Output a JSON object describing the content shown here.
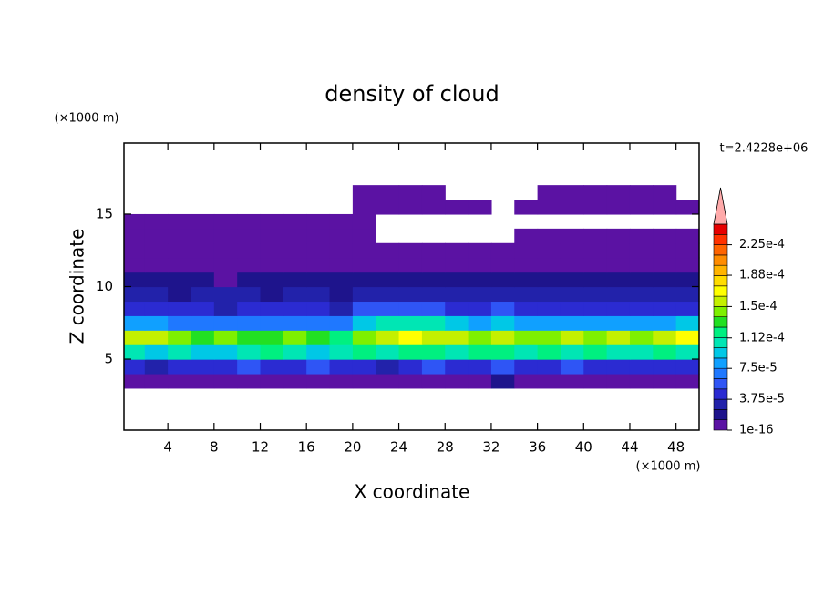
{
  "chart_data": {
    "type": "filled-contour",
    "title": "density of cloud",
    "x_label": "X coordinate",
    "y_label": "Z coordinate",
    "x_unit": "(×1000 m)",
    "y_unit": "(×1000 m)",
    "time_label": "t=2.4228e+06",
    "xlim": [
      0.2,
      50
    ],
    "ylim": [
      0.1,
      19.9
    ],
    "xticks": [
      4,
      8,
      12,
      16,
      20,
      24,
      28,
      32,
      36,
      40,
      44,
      48
    ],
    "yticks": [
      5,
      10,
      15
    ],
    "x": [
      1,
      3,
      5,
      7,
      9,
      11,
      13,
      15,
      17,
      19,
      21,
      23,
      25,
      27,
      29,
      31,
      33,
      35,
      37,
      39,
      41,
      43,
      45,
      47,
      49
    ],
    "y": [
      3.5,
      4.5,
      5.5,
      6.5,
      7.5,
      8.5,
      9.5,
      10.5,
      11.5,
      12.5,
      13.5,
      14.5,
      15.5,
      16.5
    ],
    "values": [
      [
        6e-06,
        8e-06,
        5e-06,
        9e-06,
        7e-06,
        6e-06,
        8e-06,
        5e-06,
        7e-06,
        9e-06,
        6e-06,
        8e-06,
        7e-06,
        5e-06,
        9e-06,
        6e-06,
        1.4e-05,
        8e-06,
        6e-06,
        7e-06,
        9e-06,
        5e-06,
        8e-06,
        7e-06,
        6e-06
      ],
      [
        4.2e-05,
        3.6e-05,
        4.8e-05,
        3.9e-05,
        4.4e-05,
        5.2e-05,
        3.8e-05,
        4.6e-05,
        5.5e-05,
        4.1e-05,
        4.9e-05,
        3.7e-05,
        4.5e-05,
        5.1e-05,
        4.3e-05,
        3.9e-05,
        5.8e-05,
        4e-05,
        4.7e-05,
        5.3e-05,
        3.8e-05,
        4.4e-05,
        5e-05,
        4.2e-05,
        3.9e-05
      ],
      [
        0.000105,
        9.8e-05,
        0.000112,
        0.0001,
        9.5e-05,
        0.000108,
        0.000115,
        0.000102,
        9.6e-05,
        0.00011,
        0.000118,
        0.000104,
        0.00012,
        0.000113,
        0.000107,
        0.000116,
        0.000122,
        0.000109,
        0.000114,
        0.000101,
        0.000117,
        0.000111,
        0.000106,
        0.000119,
        0.000103
      ],
      [
        0.000162,
        0.000155,
        0.000138,
        0.00013,
        0.000142,
        0.000135,
        0.000128,
        0.00014,
        0.000133,
        0.000125,
        0.000145,
        0.000158,
        0.000166,
        0.00016,
        0.000152,
        0.000148,
        0.000157,
        0.00015,
        0.000144,
        0.000153,
        0.000147,
        0.000156,
        0.00015,
        0.000161,
        0.000168
      ],
      [
        8.2e-05,
        7.8e-05,
        7.2e-05,
        6.9e-05,
        7.5e-05,
        7.1e-05,
        6.8e-05,
        7.4e-05,
        7e-05,
        6.6e-05,
        8.8e-05,
        0.000102,
        0.000108,
        0.000105,
        9.6e-05,
        8.4e-05,
        0.0001,
        8.6e-05,
        7.9e-05,
        8.3e-05,
        7.6e-05,
        8.1e-05,
        7.7e-05,
        8.5e-05,
        8.9e-05
      ],
      [
        4.6e-05,
        4.1e-05,
        3.8e-05,
        4.4e-05,
        3.6e-05,
        4.2e-05,
        3.9e-05,
        4.7e-05,
        4e-05,
        3.5e-05,
        5.2e-05,
        5.8e-05,
        6.1e-05,
        5.5e-05,
        4.9e-05,
        4.5e-05,
        5.3e-05,
        4.8e-05,
        4.3e-05,
        4.6e-05,
        4.1e-05,
        4.4e-05,
        4e-05,
        4.7e-05,
        5e-05
      ],
      [
        2.6e-05,
        2.9e-05,
        2.4e-05,
        3.1e-05,
        2.7e-05,
        3.3e-05,
        2.5e-05,
        2.8e-05,
        3e-05,
        2.3e-05,
        3.2e-05,
        3.5e-05,
        3.4e-05,
        3.6e-05,
        3e-05,
        2.8e-05,
        3.3e-05,
        2.9e-05,
        2.6e-05,
        3.1e-05,
        2.7e-05,
        2.9e-05,
        3.2e-05,
        3.4e-05,
        3e-05
      ],
      [
        1.5e-05,
        1.3e-05,
        1.6e-05,
        1.4e-05,
        1.2e-05,
        1.5e-05,
        1.7e-05,
        1.3e-05,
        1.4e-05,
        1.6e-05,
        1.8e-05,
        1.5e-05,
        1.4e-05,
        1.6e-05,
        1.7e-05,
        1.5e-05,
        1.3e-05,
        1.6e-05,
        1.4e-05,
        1.5e-05,
        1.9e-05,
        1.7e-05,
        1.6e-05,
        1.8e-05,
        1.5e-05
      ],
      [
        7e-06,
        6e-06,
        8e-06,
        5e-06,
        7e-06,
        9e-06,
        6e-06,
        8e-06,
        7e-06,
        6e-06,
        9e-06,
        8e-06,
        7e-06,
        6e-06,
        8e-06,
        7e-06,
        9e-06,
        6e-06,
        8e-06,
        7e-06,
        9e-06,
        8e-06,
        7e-06,
        6e-06,
        8e-06
      ],
      [
        4e-06,
        3e-06,
        5e-06,
        4e-06,
        3e-06,
        4e-06,
        5e-06,
        3e-06,
        4e-06,
        5e-06,
        4e-06,
        3e-06,
        4e-06,
        5e-06,
        4e-06,
        3e-06,
        4e-06,
        5e-06,
        4e-06,
        3e-06,
        4e-06,
        5e-06,
        4e-06,
        3e-06,
        4e-06
      ],
      [
        3e-06,
        2e-06,
        3e-06,
        2e-06,
        3e-06,
        2e-06,
        3e-06,
        2e-06,
        3e-06,
        2e-06,
        3e-06,
        null,
        null,
        null,
        null,
        null,
        null,
        2e-06,
        3e-06,
        2e-06,
        3e-06,
        2e-06,
        3e-06,
        2e-06,
        3e-06
      ],
      [
        2e-06,
        2e-06,
        3e-06,
        2e-06,
        2e-06,
        3e-06,
        2e-06,
        2e-06,
        3e-06,
        2e-06,
        2e-06,
        null,
        null,
        null,
        null,
        null,
        null,
        null,
        null,
        null,
        null,
        null,
        null,
        null,
        null
      ],
      [
        null,
        null,
        null,
        null,
        null,
        null,
        null,
        null,
        null,
        null,
        2e-06,
        2e-06,
        3e-06,
        2e-06,
        2e-06,
        2e-06,
        null,
        2e-06,
        3e-06,
        2e-06,
        2e-06,
        3e-06,
        2e-06,
        2e-06,
        2e-06
      ],
      [
        null,
        null,
        null,
        null,
        null,
        null,
        null,
        null,
        null,
        null,
        2e-06,
        2e-06,
        2e-06,
        2e-06,
        null,
        null,
        null,
        null,
        2e-06,
        2e-06,
        3e-06,
        2e-06,
        2e-06,
        2e-06,
        null
      ]
    ],
    "clim": [
      1e-16,
      0.00025
    ],
    "colors": [
      "#5b12a3",
      "#1e148c",
      "#2222aa",
      "#2b2bd2",
      "#2f55f5",
      "#1f78ff",
      "#10a0ff",
      "#00c8e6",
      "#00e6b4",
      "#00f080",
      "#22e022",
      "#7ef000",
      "#c4f000",
      "#ffff00",
      "#ffdc00",
      "#ffb400",
      "#ff8c00",
      "#ff6400",
      "#ff3200",
      "#e60000"
    ],
    "over_color": "#ffaaaa",
    "cbar_ticks": [
      {
        "value": 1e-16,
        "label": "1e-16"
      },
      {
        "value": 3.75e-05,
        "label": "3.75e-5"
      },
      {
        "value": 7.5e-05,
        "label": "7.5e-5"
      },
      {
        "value": 0.000112,
        "label": "1.12e-4"
      },
      {
        "value": 0.00015,
        "label": "1.5e-4"
      },
      {
        "value": 0.000188,
        "label": "1.88e-4"
      },
      {
        "value": 0.000225,
        "label": "2.25e-4"
      }
    ]
  }
}
